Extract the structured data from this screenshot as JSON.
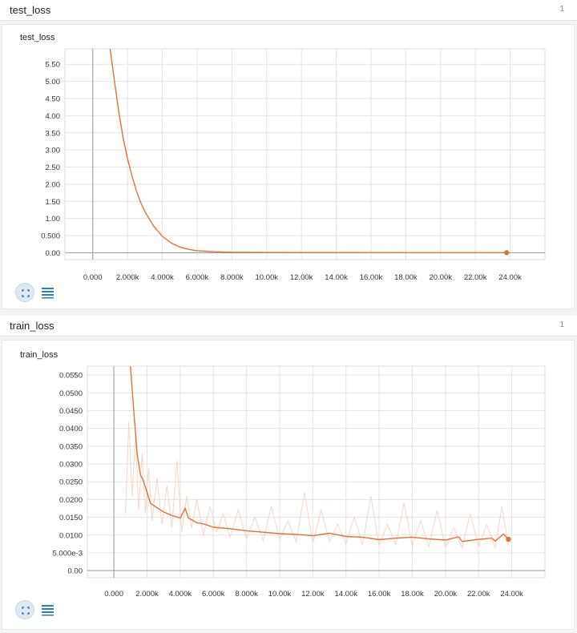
{
  "panels": [
    {
      "header_title": "test_loss",
      "count": "1",
      "chart_title": "test_loss",
      "chart_data": {
        "type": "line",
        "title": "test_loss",
        "xlabel": "",
        "ylabel": "",
        "x_ticks": [
          "0.000",
          "2.000k",
          "4.000k",
          "6.000k",
          "8.000k",
          "10.00k",
          "12.00k",
          "14.00k",
          "16.00k",
          "18.00k",
          "20.00k",
          "22.00k",
          "24.00k"
        ],
        "y_ticks": [
          "0.00",
          "0.500",
          "1.00",
          "1.50",
          "2.00",
          "2.50",
          "3.00",
          "3.50",
          "4.00",
          "4.50",
          "5.00",
          "5.50"
        ],
        "xlim": [
          -1600,
          26000
        ],
        "ylim": [
          -0.2,
          5.95
        ],
        "grid": true,
        "series": [
          {
            "color": "#e07040",
            "x": [
              1000,
              1250,
              1500,
              1750,
              2000,
              2250,
              2500,
              2750,
              3000,
              3500,
              4000,
              4500,
              5000,
              5500,
              6000,
              7000,
              8000,
              10000,
              14000,
              18000,
              22000,
              23800
            ],
            "y": [
              5.95,
              5.0,
              4.1,
              3.35,
              2.75,
              2.25,
              1.82,
              1.48,
              1.2,
              0.78,
              0.48,
              0.29,
              0.17,
              0.1,
              0.06,
              0.03,
              0.015,
              0.008,
              0.005,
              0.004,
              0.004,
              0.004
            ]
          }
        ]
      },
      "buttons": {
        "expand": "expand-icon",
        "data": "list-icon"
      }
    },
    {
      "header_title": "train_loss",
      "count": "1",
      "chart_title": "train_loss",
      "chart_data": {
        "type": "line",
        "title": "train_loss",
        "xlabel": "",
        "ylabel": "",
        "x_ticks": [
          "0.000",
          "2.000k",
          "4.000k",
          "6.000k",
          "8.000k",
          "10.00k",
          "12.00k",
          "14.00k",
          "16.00k",
          "18.00k",
          "20.00k",
          "22.00k",
          "24.00k"
        ],
        "y_ticks": [
          "0.00",
          "5.000e-3",
          "0.0100",
          "0.0150",
          "0.0200",
          "0.0250",
          "0.0300",
          "0.0350",
          "0.0400",
          "0.0450",
          "0.0500",
          "0.0550"
        ],
        "xlim": [
          -1600,
          26000
        ],
        "ylim": [
          -0.002,
          0.0575
        ],
        "grid": true,
        "series": [
          {
            "color": "#e07040",
            "x": [
              1000,
              1200,
              1400,
              1600,
              1800,
              2000,
              2200,
              2500,
              3000,
              3500,
              4000,
              4300,
              4500,
              5000,
              5500,
              6000,
              7000,
              8000,
              9000,
              10000,
              11000,
              12000,
              13000,
              14000,
              15000,
              16000,
              17000,
              18000,
              19000,
              20000,
              20800,
              21000,
              22000,
              22800,
              23000,
              23500,
              23800
            ],
            "y": [
              0.0575,
              0.045,
              0.033,
              0.027,
              0.025,
              0.022,
              0.019,
              0.018,
              0.0165,
              0.0155,
              0.0148,
              0.0175,
              0.0148,
              0.0135,
              0.013,
              0.0122,
              0.0118,
              0.0112,
              0.0108,
              0.0104,
              0.0102,
              0.0098,
              0.0105,
              0.0096,
              0.0094,
              0.0087,
              0.0091,
              0.0094,
              0.0089,
              0.0086,
              0.0095,
              0.0082,
              0.0088,
              0.0091,
              0.0083,
              0.0103,
              0.0088
            ]
          },
          {
            "color": "#f8c9b3",
            "name": "",
            "x": [
              700,
              900,
              1100,
              1300,
              1500,
              1700,
              1900,
              2100,
              2300,
              2600,
              2900,
              3200,
              3500,
              3800,
              4100,
              4400,
              4700,
              5000,
              5400,
              5800,
              6200,
              6600,
              7000,
              7500,
              8000,
              8500,
              9000,
              9500,
              10000,
              10500,
              11000,
              11500,
              12000,
              12500,
              13000,
              13500,
              14000,
              14500,
              15000,
              15500,
              16000,
              16500,
              17000,
              17500,
              18000,
              18500,
              19000,
              19500,
              20000,
              20500,
              21000,
              21500,
              22000,
              22500,
              23000,
              23400,
              23800
            ],
            "y": [
              0.016,
              0.042,
              0.021,
              0.038,
              0.017,
              0.033,
              0.016,
              0.029,
              0.014,
              0.026,
              0.013,
              0.024,
              0.012,
              0.031,
              0.011,
              0.021,
              0.012,
              0.02,
              0.01,
              0.018,
              0.011,
              0.016,
              0.0095,
              0.017,
              0.009,
              0.015,
              0.0085,
              0.018,
              0.0088,
              0.014,
              0.008,
              0.022,
              0.0078,
              0.017,
              0.0082,
              0.013,
              0.0075,
              0.015,
              0.0072,
              0.021,
              0.007,
              0.013,
              0.0073,
              0.019,
              0.007,
              0.014,
              0.0068,
              0.017,
              0.0066,
              0.012,
              0.0065,
              0.016,
              0.0068,
              0.013,
              0.0064,
              0.018,
              0.007
            ]
          }
        ]
      },
      "buttons": {
        "expand": "expand-icon",
        "data": "list-icon"
      }
    }
  ]
}
